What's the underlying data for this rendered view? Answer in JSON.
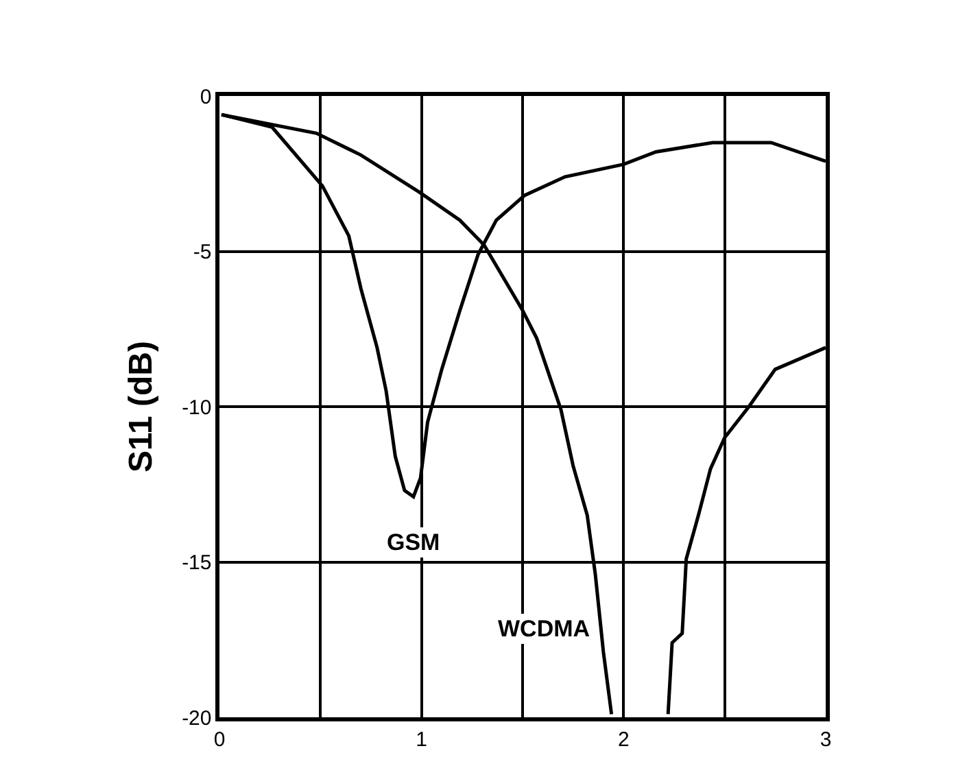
{
  "chart_data": {
    "type": "line",
    "ylabel": "S11 (dB)",
    "xlim": [
      0,
      3
    ],
    "ylim": [
      -20,
      0
    ],
    "xticks": [
      0,
      {
        "value": 0.5,
        "label": null
      },
      1,
      {
        "value": 1.5,
        "label": null
      },
      2,
      {
        "value": 2.5,
        "label": null
      },
      3
    ],
    "yticks": [
      -20,
      -15,
      -10,
      -5,
      0
    ],
    "grid": true,
    "legend": false,
    "marker": "none",
    "line_style": "solid",
    "series": [
      {
        "name": "GSM",
        "color": "#000000",
        "x": [
          0.01,
          0.26,
          0.51,
          0.64,
          0.7,
          0.78,
          0.825,
          0.87,
          0.916,
          0.96,
          0.995,
          1.03,
          1.1,
          1.19,
          1.28,
          1.37,
          1.51,
          1.71,
          2.0,
          2.16,
          2.44,
          2.73,
          3.0
        ],
        "values": [
          -0.6,
          -1.0,
          -2.9,
          -4.5,
          -6.2,
          -8.1,
          -9.5,
          -11.6,
          -12.7,
          -12.9,
          -12.3,
          -10.5,
          -8.8,
          -6.9,
          -5.1,
          -4.0,
          -3.2,
          -2.6,
          -2.2,
          -1.8,
          -1.5,
          -1.5,
          -2.1
        ]
      },
      {
        "name": "WCDMA",
        "color": "#000000",
        "x": [
          0.01,
          0.48,
          0.7,
          0.99,
          1.19,
          1.31,
          1.5,
          1.57,
          1.69,
          1.75,
          1.82,
          1.86,
          1.9,
          1.94,
          2.08,
          2.22,
          2.24,
          2.29,
          2.31,
          2.37,
          2.43,
          2.5,
          2.62,
          2.75,
          3.0
        ],
        "values": [
          -0.6,
          -1.2,
          -1.9,
          -3.1,
          -4.0,
          -4.8,
          -6.9,
          -7.8,
          -10.1,
          -11.9,
          -13.5,
          -15.4,
          -17.9,
          -19.9,
          null,
          -19.9,
          -17.6,
          -17.3,
          -14.9,
          -13.5,
          -12.0,
          -11.0,
          -10.0,
          -8.8,
          -8.1
        ]
      }
    ]
  }
}
